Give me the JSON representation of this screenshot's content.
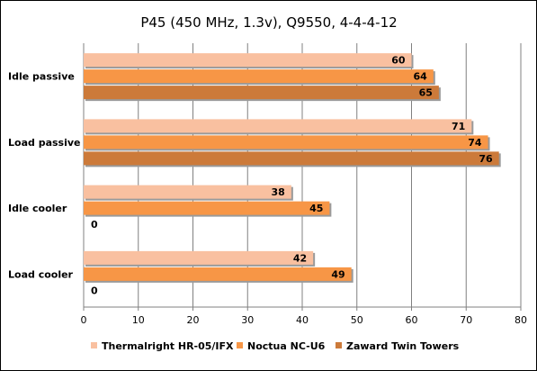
{
  "chart_data": {
    "type": "bar",
    "orientation": "horizontal",
    "title": "P45 (450 MHz, 1.3v), Q9550, 4-4-4-12",
    "categories": [
      "Idle passive",
      "Load passive",
      "Idle cooler",
      "Load cooler"
    ],
    "series": [
      {
        "name": "Thermalright HR-05/IFX",
        "color": "#f9c0a0",
        "values": [
          60,
          71,
          38,
          42
        ]
      },
      {
        "name": "Noctua NC-U6",
        "color": "#f79646",
        "values": [
          64,
          74,
          45,
          49
        ]
      },
      {
        "name": "Zaward Twin Towers",
        "color": "#cc7a3a",
        "values": [
          65,
          76,
          0,
          0
        ]
      }
    ],
    "xlim": [
      0,
      80
    ],
    "xticks": [
      0,
      10,
      20,
      30,
      40,
      50,
      60,
      70,
      80
    ],
    "grid": true,
    "legend_position": "bottom"
  }
}
